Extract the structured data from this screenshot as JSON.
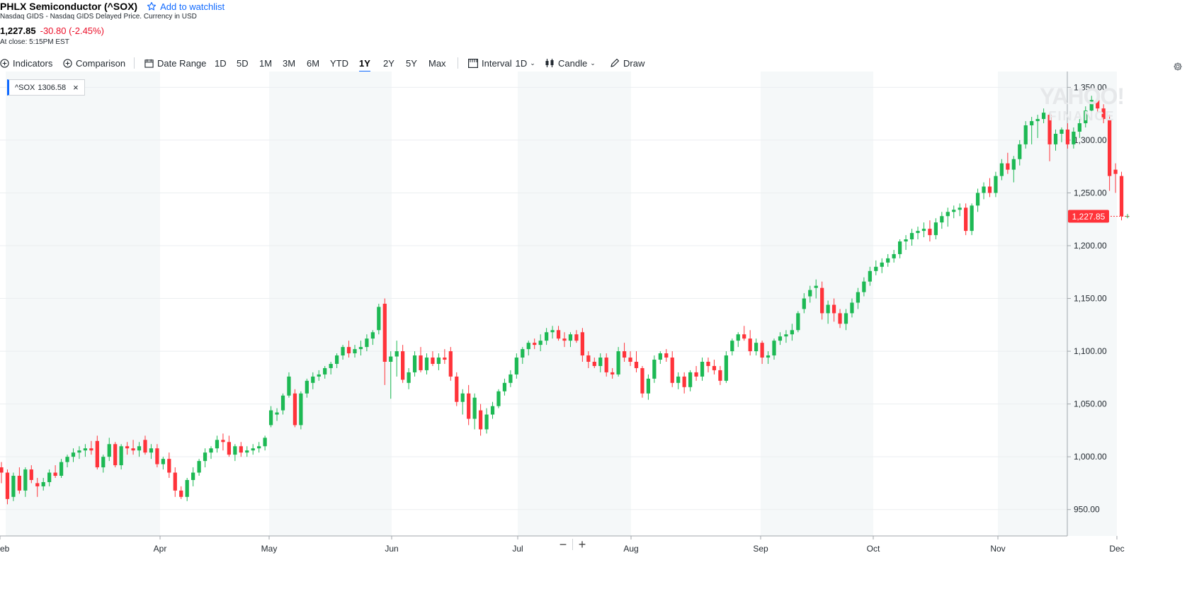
{
  "header": {
    "title": "PHLX Semiconductor (^SOX)",
    "watchlist_label": "Add to watchlist",
    "subtitle": "Nasdaq GIDS - Nasdaq GIDS Delayed Price. Currency in USD",
    "price": "1,227.85",
    "change": "-30.80 (-2.45%)",
    "close_note": "At close: 5:15PM EST"
  },
  "toolbar": {
    "indicators": "Indicators",
    "comparison": "Comparison",
    "date_range": "Date Range",
    "ranges": [
      "1D",
      "5D",
      "1M",
      "3M",
      "6M",
      "YTD",
      "1Y",
      "2Y",
      "5Y",
      "Max"
    ],
    "active_range": "1Y",
    "interval_label": "Interval",
    "interval_value": "1D",
    "chart_type": "Candle",
    "draw": "Draw"
  },
  "legend": {
    "symbol": "^SOX",
    "value": "1306.58"
  },
  "watermark": {
    "line1": "YAHOO!",
    "line2": "FINANCE"
  },
  "colors": {
    "up": "#1db954",
    "down": "#ff333a",
    "accent": "#0f69ff",
    "price_tag": "#ff333a"
  },
  "chart_data": {
    "type": "candlestick",
    "ylim": [
      925,
      1365
    ],
    "yticks": [
      "1,350.00",
      "1,300.00",
      "1,250.00",
      "1,200.00",
      "1,150.00",
      "1,100.00",
      "1,050.00",
      "1,000.00",
      "950.00"
    ],
    "x_labels": [
      "eb",
      "Apr",
      "May",
      "Jun",
      "Jul",
      "Aug",
      "Sep",
      "Oct",
      "Nov",
      "Dec"
    ],
    "last_price_label": "1,227.85",
    "last_price": 1227.85,
    "candles": [
      [
        990,
        995,
        975,
        985
      ],
      [
        985,
        988,
        955,
        960
      ],
      [
        962,
        985,
        958,
        982
      ],
      [
        982,
        990,
        965,
        968
      ],
      [
        968,
        990,
        962,
        988
      ],
      [
        988,
        992,
        975,
        978
      ],
      [
        975,
        980,
        962,
        972
      ],
      [
        972,
        980,
        968,
        976
      ],
      [
        976,
        988,
        972,
        985
      ],
      [
        985,
        992,
        980,
        982
      ],
      [
        982,
        998,
        980,
        995
      ],
      [
        995,
        1002,
        990,
        1000
      ],
      [
        1000,
        1008,
        995,
        1004
      ],
      [
        1004,
        1010,
        998,
        1006
      ],
      [
        1006,
        1012,
        1000,
        1008
      ],
      [
        1008,
        1015,
        1002,
        1006
      ],
      [
        1015,
        1020,
        988,
        990
      ],
      [
        990,
        1002,
        985,
        1000
      ],
      [
        1000,
        1018,
        996,
        1012
      ],
      [
        1012,
        1014,
        990,
        992
      ],
      [
        992,
        1012,
        988,
        1010
      ],
      [
        1010,
        1014,
        1002,
        1008
      ],
      [
        1008,
        1016,
        1002,
        1006
      ],
      [
        1006,
        1014,
        1000,
        1010
      ],
      [
        1016,
        1020,
        1002,
        1004
      ],
      [
        1004,
        1012,
        998,
        1008
      ],
      [
        1008,
        1012,
        990,
        993
      ],
      [
        993,
        1000,
        988,
        998
      ],
      [
        998,
        1004,
        980,
        985
      ],
      [
        985,
        990,
        962,
        968
      ],
      [
        968,
        972,
        960,
        962
      ],
      [
        962,
        980,
        958,
        978
      ],
      [
        978,
        990,
        972,
        985
      ],
      [
        985,
        998,
        982,
        996
      ],
      [
        996,
        1008,
        990,
        1004
      ],
      [
        1004,
        1010,
        998,
        1008
      ],
      [
        1008,
        1020,
        1004,
        1016
      ],
      [
        1016,
        1022,
        1006,
        1014
      ],
      [
        1014,
        1020,
        1000,
        1002
      ],
      [
        1002,
        1012,
        996,
        1010
      ],
      [
        1010,
        1014,
        1000,
        1004
      ],
      [
        1004,
        1010,
        1000,
        1006
      ],
      [
        1006,
        1012,
        1002,
        1008
      ],
      [
        1008,
        1014,
        1004,
        1010
      ],
      [
        1010,
        1020,
        1006,
        1018
      ],
      [
        1030,
        1048,
        1028,
        1044
      ],
      [
        1040,
        1046,
        1034,
        1042
      ],
      [
        1044,
        1060,
        1040,
        1058
      ],
      [
        1058,
        1080,
        1056,
        1076
      ],
      [
        1060,
        1064,
        1028,
        1030
      ],
      [
        1030,
        1062,
        1026,
        1060
      ],
      [
        1060,
        1074,
        1056,
        1072
      ],
      [
        1070,
        1080,
        1064,
        1076
      ],
      [
        1076,
        1082,
        1072,
        1078
      ],
      [
        1078,
        1086,
        1074,
        1084
      ],
      [
        1084,
        1090,
        1078,
        1088
      ],
      [
        1088,
        1098,
        1084,
        1096
      ],
      [
        1096,
        1106,
        1092,
        1104
      ],
      [
        1104,
        1110,
        1094,
        1098
      ],
      [
        1098,
        1106,
        1094,
        1102
      ],
      [
        1102,
        1110,
        1096,
        1104
      ],
      [
        1104,
        1116,
        1100,
        1112
      ],
      [
        1112,
        1120,
        1106,
        1118
      ],
      [
        1120,
        1145,
        1116,
        1142
      ],
      [
        1145,
        1150,
        1068,
        1090
      ],
      [
        1090,
        1100,
        1055,
        1095
      ],
      [
        1095,
        1110,
        1076,
        1100
      ],
      [
        1100,
        1106,
        1070,
        1073
      ],
      [
        1070,
        1084,
        1064,
        1080
      ],
      [
        1080,
        1100,
        1076,
        1096
      ],
      [
        1096,
        1104,
        1080,
        1082
      ],
      [
        1082,
        1098,
        1078,
        1094
      ],
      [
        1094,
        1100,
        1086,
        1088
      ],
      [
        1088,
        1098,
        1082,
        1094
      ],
      [
        1094,
        1102,
        1088,
        1092
      ],
      [
        1100,
        1104,
        1072,
        1076
      ],
      [
        1076,
        1080,
        1048,
        1052
      ],
      [
        1052,
        1064,
        1040,
        1060
      ],
      [
        1060,
        1068,
        1030,
        1036
      ],
      [
        1036,
        1060,
        1026,
        1056
      ],
      [
        1044,
        1050,
        1020,
        1026
      ],
      [
        1026,
        1046,
        1022,
        1040
      ],
      [
        1040,
        1052,
        1036,
        1048
      ],
      [
        1048,
        1064,
        1046,
        1062
      ],
      [
        1062,
        1074,
        1058,
        1070
      ],
      [
        1070,
        1082,
        1066,
        1078
      ],
      [
        1078,
        1098,
        1074,
        1094
      ],
      [
        1094,
        1104,
        1088,
        1102
      ],
      [
        1102,
        1110,
        1096,
        1108
      ],
      [
        1108,
        1112,
        1102,
        1106
      ],
      [
        1106,
        1116,
        1100,
        1110
      ],
      [
        1110,
        1122,
        1106,
        1118
      ],
      [
        1118,
        1124,
        1112,
        1120
      ],
      [
        1120,
        1124,
        1110,
        1112
      ],
      [
        1112,
        1118,
        1104,
        1110
      ],
      [
        1110,
        1118,
        1104,
        1116
      ],
      [
        1116,
        1120,
        1108,
        1110
      ],
      [
        1118,
        1122,
        1090,
        1096
      ],
      [
        1096,
        1100,
        1084,
        1090
      ],
      [
        1090,
        1094,
        1084,
        1086
      ],
      [
        1086,
        1098,
        1080,
        1094
      ],
      [
        1094,
        1098,
        1076,
        1080
      ],
      [
        1080,
        1084,
        1074,
        1078
      ],
      [
        1078,
        1104,
        1076,
        1100
      ],
      [
        1100,
        1108,
        1090,
        1094
      ],
      [
        1094,
        1100,
        1086,
        1090
      ],
      [
        1090,
        1100,
        1080,
        1084
      ],
      [
        1084,
        1086,
        1056,
        1060
      ],
      [
        1060,
        1078,
        1054,
        1074
      ],
      [
        1074,
        1096,
        1070,
        1092
      ],
      [
        1092,
        1100,
        1088,
        1098
      ],
      [
        1098,
        1102,
        1090,
        1094
      ],
      [
        1094,
        1100,
        1066,
        1070
      ],
      [
        1070,
        1080,
        1064,
        1076
      ],
      [
        1076,
        1080,
        1060,
        1066
      ],
      [
        1066,
        1082,
        1062,
        1080
      ],
      [
        1080,
        1086,
        1072,
        1076
      ],
      [
        1076,
        1094,
        1072,
        1090
      ],
      [
        1090,
        1094,
        1080,
        1086
      ],
      [
        1086,
        1092,
        1078,
        1082
      ],
      [
        1082,
        1086,
        1068,
        1072
      ],
      [
        1072,
        1100,
        1070,
        1096
      ],
      [
        1100,
        1112,
        1096,
        1110
      ],
      [
        1110,
        1118,
        1104,
        1116
      ],
      [
        1116,
        1124,
        1110,
        1112
      ],
      [
        1112,
        1120,
        1096,
        1100
      ],
      [
        1100,
        1112,
        1096,
        1108
      ],
      [
        1108,
        1110,
        1088,
        1094
      ],
      [
        1094,
        1100,
        1088,
        1096
      ],
      [
        1096,
        1112,
        1092,
        1110
      ],
      [
        1110,
        1118,
        1106,
        1114
      ],
      [
        1114,
        1120,
        1108,
        1116
      ],
      [
        1116,
        1126,
        1110,
        1120
      ],
      [
        1120,
        1138,
        1118,
        1136
      ],
      [
        1140,
        1155,
        1136,
        1150
      ],
      [
        1152,
        1162,
        1146,
        1158
      ],
      [
        1160,
        1168,
        1150,
        1162
      ],
      [
        1160,
        1166,
        1130,
        1136
      ],
      [
        1136,
        1148,
        1126,
        1144
      ],
      [
        1144,
        1150,
        1128,
        1136
      ],
      [
        1136,
        1140,
        1122,
        1126
      ],
      [
        1126,
        1140,
        1120,
        1136
      ],
      [
        1136,
        1150,
        1132,
        1146
      ],
      [
        1146,
        1160,
        1140,
        1156
      ],
      [
        1156,
        1170,
        1152,
        1166
      ],
      [
        1166,
        1180,
        1162,
        1176
      ],
      [
        1176,
        1186,
        1172,
        1180
      ],
      [
        1180,
        1188,
        1174,
        1184
      ],
      [
        1184,
        1192,
        1180,
        1188
      ],
      [
        1188,
        1196,
        1184,
        1192
      ],
      [
        1192,
        1206,
        1188,
        1204
      ],
      [
        1204,
        1210,
        1196,
        1206
      ],
      [
        1206,
        1216,
        1200,
        1212
      ],
      [
        1212,
        1218,
        1206,
        1214
      ],
      [
        1214,
        1222,
        1208,
        1216
      ],
      [
        1216,
        1224,
        1204,
        1210
      ],
      [
        1210,
        1226,
        1206,
        1222
      ],
      [
        1222,
        1232,
        1216,
        1228
      ],
      [
        1228,
        1236,
        1218,
        1232
      ],
      [
        1232,
        1238,
        1226,
        1234
      ],
      [
        1234,
        1240,
        1228,
        1236
      ],
      [
        1236,
        1240,
        1210,
        1214
      ],
      [
        1214,
        1240,
        1210,
        1238
      ],
      [
        1238,
        1254,
        1232,
        1250
      ],
      [
        1250,
        1260,
        1244,
        1256
      ],
      [
        1256,
        1264,
        1246,
        1250
      ],
      [
        1250,
        1270,
        1246,
        1266
      ],
      [
        1266,
        1282,
        1262,
        1278
      ],
      [
        1278,
        1288,
        1268,
        1272
      ],
      [
        1272,
        1285,
        1260,
        1282
      ],
      [
        1282,
        1300,
        1276,
        1296
      ],
      [
        1296,
        1318,
        1292,
        1314
      ],
      [
        1314,
        1322,
        1296,
        1318
      ],
      [
        1318,
        1324,
        1302,
        1320
      ],
      [
        1320,
        1330,
        1316,
        1326
      ],
      [
        1324,
        1326,
        1280,
        1296
      ],
      [
        1296,
        1310,
        1290,
        1306
      ],
      [
        1306,
        1312,
        1298,
        1310
      ],
      [
        1310,
        1316,
        1292,
        1296
      ],
      [
        1296,
        1312,
        1292,
        1308
      ],
      [
        1308,
        1320,
        1302,
        1316
      ],
      [
        1316,
        1332,
        1312,
        1328
      ],
      [
        1328,
        1342,
        1320,
        1338
      ],
      [
        1338,
        1346,
        1326,
        1330
      ],
      [
        1330,
        1334,
        1316,
        1320
      ],
      [
        1320,
        1324,
        1252,
        1266
      ],
      [
        1272,
        1278,
        1250,
        1268
      ],
      [
        1266,
        1270,
        1224,
        1228
      ],
      [
        1228,
        1230,
        1226,
        1228
      ]
    ]
  }
}
